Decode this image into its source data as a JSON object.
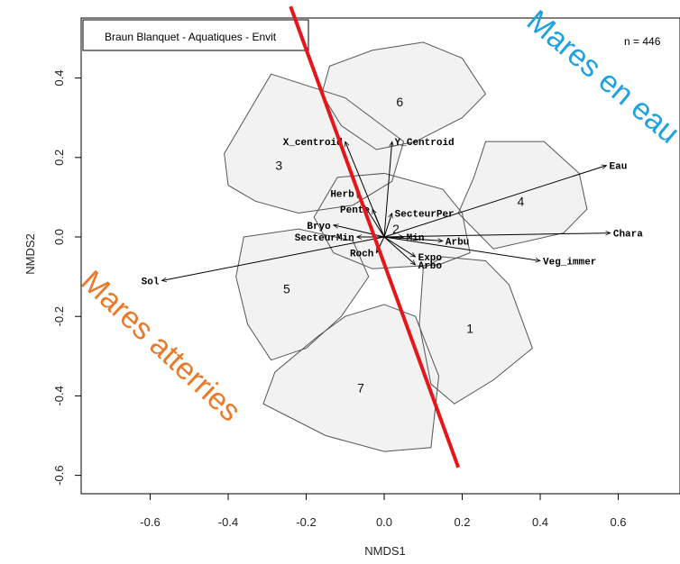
{
  "chart_data": {
    "type": "scatter",
    "title": "Braun Blanquet - Aquatiques - Envit",
    "n_label": "n = 446",
    "xlabel": "NMDS1",
    "ylabel": "NMDS2",
    "xlim": [
      -0.75,
      0.75
    ],
    "ylim": [
      -0.65,
      0.5
    ],
    "xticks": [
      -0.6,
      -0.4,
      -0.2,
      0.0,
      0.2,
      0.4,
      0.6
    ],
    "yticks": [
      -0.6,
      -0.4,
      -0.2,
      0.0,
      0.2,
      0.4
    ],
    "xtick_labels": [
      "-0.6",
      "-0.4",
      "-0.2",
      "0.0",
      "0.2",
      "0.4",
      "0.6"
    ],
    "ytick_labels": [
      "-0.6",
      "-0.4",
      "-0.2",
      "0.0",
      "0.2",
      "0.4"
    ],
    "grid": false,
    "colors": {
      "spider": "#bdbdbd",
      "hull": "#555555",
      "hull_fill": "#f2f2f2",
      "divider": "#e8141b",
      "anno_top": "#1fa1e0",
      "anno_bottom": "#e87a2a"
    },
    "clusters": [
      {
        "label": "1",
        "center": [
          0.22,
          -0.23
        ],
        "hull": [
          [
            0.1,
            -0.08
          ],
          [
            0.15,
            -0.05
          ],
          [
            0.26,
            -0.06
          ],
          [
            0.32,
            -0.12
          ],
          [
            0.38,
            -0.28
          ],
          [
            0.28,
            -0.36
          ],
          [
            0.18,
            -0.42
          ],
          [
            0.12,
            -0.37
          ],
          [
            0.09,
            -0.22
          ]
        ]
      },
      {
        "label": "2",
        "center": [
          0.03,
          0.02
        ],
        "hull": [
          [
            -0.12,
            0.15
          ],
          [
            0.0,
            0.16
          ],
          [
            0.15,
            0.12
          ],
          [
            0.2,
            0.06
          ],
          [
            0.22,
            -0.04
          ],
          [
            0.14,
            -0.07
          ],
          [
            -0.03,
            -0.08
          ],
          [
            -0.13,
            -0.04
          ],
          [
            -0.18,
            0.05
          ]
        ]
      },
      {
        "label": "3",
        "center": [
          -0.27,
          0.18
        ],
        "hull": [
          [
            -0.29,
            0.41
          ],
          [
            -0.1,
            0.35
          ],
          [
            0.05,
            0.24
          ],
          [
            0.02,
            0.14
          ],
          [
            -0.08,
            0.08
          ],
          [
            -0.22,
            0.06
          ],
          [
            -0.33,
            0.09
          ],
          [
            -0.4,
            0.13
          ],
          [
            -0.41,
            0.21
          ]
        ]
      },
      {
        "label": "4",
        "center": [
          0.35,
          0.09
        ],
        "hull": [
          [
            0.26,
            0.24
          ],
          [
            0.41,
            0.24
          ],
          [
            0.5,
            0.16
          ],
          [
            0.52,
            0.07
          ],
          [
            0.46,
            0.01
          ],
          [
            0.28,
            -0.03
          ],
          [
            0.19,
            0.06
          ],
          [
            0.23,
            0.15
          ]
        ]
      },
      {
        "label": "5",
        "center": [
          -0.25,
          -0.13
        ],
        "hull": [
          [
            -0.36,
            0.0
          ],
          [
            -0.22,
            0.02
          ],
          [
            -0.08,
            -0.01
          ],
          [
            -0.04,
            -0.1
          ],
          [
            -0.11,
            -0.2
          ],
          [
            -0.2,
            -0.28
          ],
          [
            -0.29,
            -0.31
          ],
          [
            -0.35,
            -0.22
          ],
          [
            -0.38,
            -0.1
          ]
        ]
      },
      {
        "label": "6",
        "center": [
          0.04,
          0.34
        ],
        "hull": [
          [
            -0.14,
            0.43
          ],
          [
            -0.03,
            0.47
          ],
          [
            0.1,
            0.49
          ],
          [
            0.2,
            0.45
          ],
          [
            0.26,
            0.36
          ],
          [
            0.2,
            0.3
          ],
          [
            0.08,
            0.24
          ],
          [
            -0.02,
            0.22
          ],
          [
            -0.11,
            0.28
          ],
          [
            -0.16,
            0.36
          ]
        ]
      },
      {
        "label": "7",
        "center": [
          -0.06,
          -0.38
        ],
        "hull": [
          [
            -0.1,
            -0.2
          ],
          [
            0.0,
            -0.17
          ],
          [
            0.08,
            -0.2
          ],
          [
            0.14,
            -0.35
          ],
          [
            0.12,
            -0.53
          ],
          [
            0.0,
            -0.54
          ],
          [
            -0.15,
            -0.5
          ],
          [
            -0.31,
            -0.42
          ],
          [
            -0.28,
            -0.34
          ],
          [
            -0.17,
            -0.25
          ]
        ]
      }
    ],
    "vectors": [
      {
        "name": "Eau",
        "x": 0.57,
        "y": 0.18
      },
      {
        "name": "Chara",
        "x": 0.58,
        "y": 0.01
      },
      {
        "name": "Veg_immer",
        "x": 0.4,
        "y": -0.06
      },
      {
        "name": "Sol",
        "x": -0.57,
        "y": -0.11
      },
      {
        "name": "X_centroid",
        "x": -0.1,
        "y": 0.24
      },
      {
        "name": "Y_Centroid",
        "x": 0.02,
        "y": 0.24
      },
      {
        "name": "Herb",
        "x": -0.07,
        "y": 0.11
      },
      {
        "name": "Pente",
        "x": -0.03,
        "y": 0.07
      },
      {
        "name": "SecteurPer",
        "x": 0.02,
        "y": 0.06
      },
      {
        "name": "Bryo",
        "x": -0.13,
        "y": 0.03
      },
      {
        "name": "SecteurMin",
        "x": -0.07,
        "y": 0.0
      },
      {
        "name": "Min",
        "x": 0.05,
        "y": 0.0
      },
      {
        "name": "Arbu",
        "x": 0.15,
        "y": -0.01
      },
      {
        "name": "Roch",
        "x": -0.02,
        "y": -0.04
      },
      {
        "name": "Expo",
        "x": 0.08,
        "y": -0.05
      },
      {
        "name": "Arbo",
        "x": 0.08,
        "y": -0.07
      }
    ],
    "vector_label_text": {
      "Eau": "Eau",
      "Chara": "Chara",
      "Veg_immer": "Veg_immer",
      "Sol": "Sol",
      "X_centroid": "X_centroid",
      "Y_Centroid": "Y_Centroid",
      "Herb": "Herb",
      "Pente": "Pente",
      "SecteurPer": "SecteurPer",
      "Bryo": "Bryo",
      "SecteurMin": "SecteurMin",
      "Min": "Min",
      "Arbu": "Arbu",
      "Roch": "Roch",
      "Expo": "Expo",
      "Arbo": "Arbo"
    },
    "divider_line": {
      "x1": -0.24,
      "y1": 0.58,
      "x2": 0.19,
      "y2": -0.58
    },
    "annotations": {
      "top_right": "Mares en eau",
      "bottom_left": "Mares atterries"
    }
  }
}
